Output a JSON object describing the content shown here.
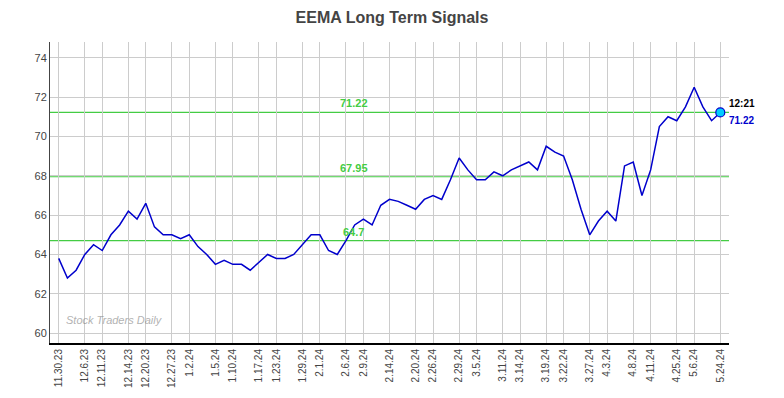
{
  "chart_data": {
    "type": "line",
    "title": "EEMA Long Term Signals",
    "categories": [
      "11.30.23",
      null,
      null,
      "12.6.23",
      null,
      "12.11.23",
      null,
      null,
      "12.14.23",
      null,
      "12.20.23",
      null,
      null,
      "12.27.23",
      null,
      "1.2.24",
      null,
      null,
      "1.5.24",
      null,
      "1.10.24",
      null,
      null,
      "1.17.24",
      null,
      "1.23.24",
      null,
      null,
      "1.29.24",
      null,
      "2.1.24",
      null,
      null,
      "2.6.24",
      null,
      "2.9.24",
      null,
      null,
      "2.14.24",
      null,
      null,
      "2.20.24",
      null,
      "2.26.24",
      null,
      null,
      "2.29.24",
      null,
      "3.5.24",
      null,
      null,
      "3.11.24",
      null,
      "3.14.24",
      null,
      null,
      "3.19.24",
      null,
      "3.22.24",
      null,
      null,
      "3.27.24",
      null,
      "4.3.24",
      null,
      null,
      "4.8.24",
      null,
      "4.11.24",
      null,
      null,
      "4.25.24",
      null,
      "5.6.24",
      null,
      null,
      "5.24.24"
    ],
    "values": [
      63.8,
      62.8,
      63.2,
      64.0,
      64.5,
      64.2,
      65.0,
      65.5,
      66.2,
      65.8,
      66.6,
      65.4,
      65.0,
      65.0,
      64.8,
      65.0,
      64.4,
      64.0,
      63.5,
      63.7,
      63.5,
      63.5,
      63.2,
      63.6,
      64.0,
      63.8,
      63.8,
      64.0,
      64.5,
      65.0,
      65.0,
      64.2,
      64.0,
      64.7,
      65.5,
      65.8,
      65.5,
      66.5,
      66.8,
      66.7,
      66.5,
      66.3,
      66.8,
      67.0,
      66.8,
      67.8,
      68.9,
      68.3,
      67.8,
      67.8,
      68.2,
      68.0,
      68.3,
      68.5,
      68.7,
      68.3,
      69.5,
      69.2,
      69.0,
      67.8,
      66.3,
      65.0,
      65.7,
      66.2,
      65.7,
      68.5,
      68.7,
      67.0,
      68.3,
      70.5,
      71.0,
      70.8,
      71.5,
      72.5,
      71.5,
      70.8,
      71.22
    ],
    "color": "#0000cc",
    "last_point_color": "#00ccff",
    "hlines": [
      {
        "value": 71.22,
        "label": "71.22",
        "color": "#44cc44"
      },
      {
        "value": 67.95,
        "label": "67.95",
        "color": "#44cc44"
      },
      {
        "value": 64.7,
        "label": "64.7",
        "color": "#44cc44"
      }
    ],
    "annotations": [
      {
        "text": "12:21",
        "color": "black"
      },
      {
        "text": "71.22",
        "color": "#0000cc"
      }
    ],
    "watermark": "Stock Traders Daily",
    "ylim": [
      59.5,
      74.8
    ],
    "yticks": [
      60,
      62,
      64,
      66,
      68,
      70,
      72,
      74
    ],
    "grid": true,
    "grid_color": "#cccccc",
    "background_color": "#ffffff"
  }
}
